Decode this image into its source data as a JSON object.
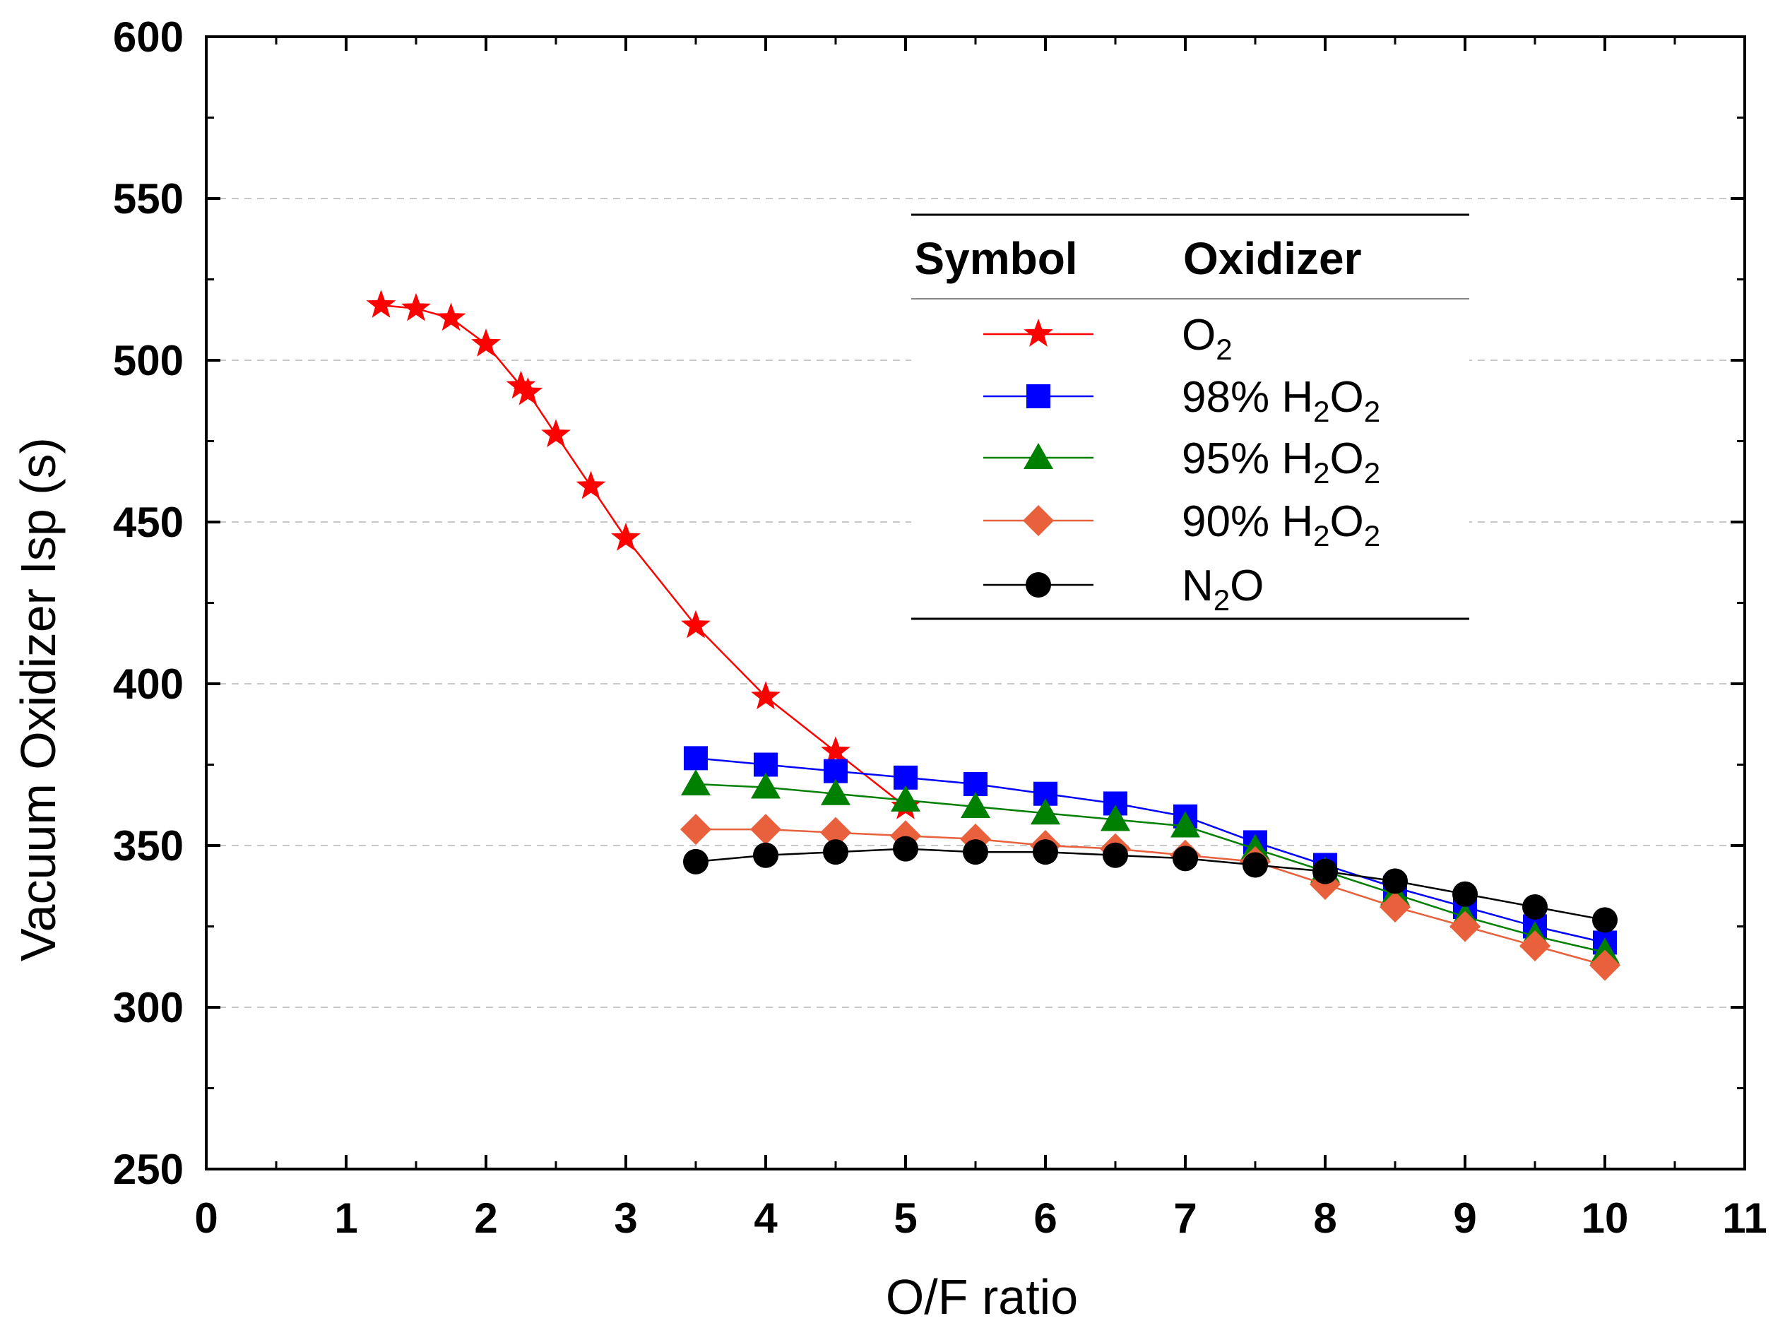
{
  "chart_data": {
    "type": "line",
    "title": "",
    "xlabel": "O/F ratio",
    "ylabel": "Vacuum Oxidizer Isp (s)",
    "xlim": [
      0,
      11
    ],
    "ylim": [
      250,
      600
    ],
    "xticks": [
      "0",
      "1",
      "2",
      "3",
      "4",
      "5",
      "6",
      "7",
      "8",
      "9",
      "10",
      "11"
    ],
    "yticks": [
      "250",
      "300",
      "350",
      "400",
      "450",
      "500",
      "550",
      "600"
    ],
    "grid": "horizontal-dashed",
    "legend": {
      "placement": "upper-right",
      "header_symbol": "Symbol",
      "header_oxidizer": "Oxidizer"
    },
    "series": [
      {
        "name": "O2",
        "label_pre": "O",
        "label_sub": "2",
        "label_post": "",
        "color": "#ff0000",
        "marker": "star",
        "x": [
          1.25,
          1.5,
          1.75,
          2.0,
          2.25,
          2.3,
          2.5,
          2.75,
          3.0,
          3.5,
          4.0,
          4.5,
          5.0
        ],
        "y": [
          517,
          516,
          513,
          505,
          492,
          490,
          477,
          461,
          445,
          418,
          396,
          379,
          362
        ]
      },
      {
        "name": "98% H2O2",
        "label_pre": "98% H",
        "label_sub": "2",
        "label_mid": "O",
        "label_sub2": "2",
        "color": "#0000ff",
        "marker": "square",
        "x": [
          3.5,
          4.0,
          4.5,
          5.0,
          5.5,
          6.0,
          6.5,
          7.0,
          7.5,
          8.0,
          8.5,
          9.0,
          9.5,
          10.0
        ],
        "y": [
          377,
          375,
          373,
          371,
          369,
          366,
          363,
          359,
          351,
          344,
          337,
          331,
          325,
          320
        ]
      },
      {
        "name": "95% H2O2",
        "label_pre": "95% H",
        "label_sub": "2",
        "label_mid": "O",
        "label_sub2": "2",
        "color": "#008000",
        "marker": "triangle",
        "x": [
          3.5,
          4.0,
          4.5,
          5.0,
          5.5,
          6.0,
          6.5,
          7.0,
          7.5,
          8.0,
          8.5,
          9.0,
          9.5,
          10.0
        ],
        "y": [
          369,
          368,
          366,
          364,
          362,
          360,
          358,
          356,
          349,
          342,
          335,
          328,
          322,
          317
        ]
      },
      {
        "name": "90% H2O2",
        "label_pre": "90% H",
        "label_sub": "2",
        "label_mid": "O",
        "label_sub2": "2",
        "color": "#e8603c",
        "marker": "diamond",
        "x": [
          3.5,
          4.0,
          4.5,
          5.0,
          5.5,
          6.0,
          6.5,
          7.0,
          7.5,
          8.0,
          8.5,
          9.0,
          9.5,
          10.0
        ],
        "y": [
          355,
          355,
          354,
          353,
          352,
          350,
          349,
          347,
          345,
          338,
          331,
          325,
          319,
          313
        ]
      },
      {
        "name": "N2O",
        "label_pre": "N",
        "label_sub": "2",
        "label_post": "O",
        "color": "#000000",
        "marker": "circle",
        "x": [
          3.5,
          4.0,
          4.5,
          5.0,
          5.5,
          6.0,
          6.5,
          7.0,
          7.5,
          8.0,
          8.5,
          9.0,
          9.5,
          10.0
        ],
        "y": [
          345,
          347,
          348,
          349,
          348,
          348,
          347,
          346,
          344,
          342,
          339,
          335,
          331,
          327
        ]
      }
    ]
  }
}
